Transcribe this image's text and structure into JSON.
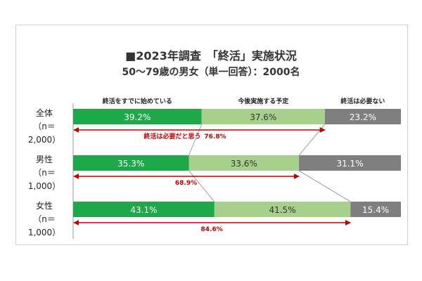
{
  "title": "■2023年調査　「終活」実施状況",
  "subtitle": "50～79歳の男女（単一回答）：2000名",
  "chart_data": {
    "type": "bar",
    "orientation": "horizontal",
    "stacked": "100%",
    "categories": [
      {
        "name": "全体",
        "n": "（n＝2,000）"
      },
      {
        "name": "男性",
        "n": "（n＝1,000）"
      },
      {
        "name": "女性",
        "n": "（n＝1,000）"
      }
    ],
    "series": [
      {
        "name": "終活をすでに始めている",
        "values": [
          39.2,
          35.3,
          43.1
        ],
        "labels": [
          "39.2%",
          "35.3%",
          "43.1%"
        ],
        "color": "#1fa84a",
        "label_color": "#ffffff"
      },
      {
        "name": "今後実施する予定",
        "values": [
          37.6,
          33.6,
          41.5
        ],
        "labels": [
          "37.6%",
          "33.6%",
          "41.5%"
        ],
        "color": "#a8d08d",
        "label_color": "#333333"
      },
      {
        "name": "終活は必要ない",
        "values": [
          23.2,
          31.1,
          15.4
        ],
        "labels": [
          "23.2%",
          "31.1%",
          "15.4%"
        ],
        "color": "#7f7f7f",
        "label_color": "#ffffff"
      }
    ],
    "annotation_label": "終活は必要だと思う",
    "totals": [
      76.8,
      68.9,
      84.6
    ],
    "totals_labels": [
      "76.8%",
      "68.9%",
      "84.6%"
    ],
    "annotation_color": "#c00000",
    "legend_position": "top",
    "xlim": [
      0,
      100
    ]
  }
}
